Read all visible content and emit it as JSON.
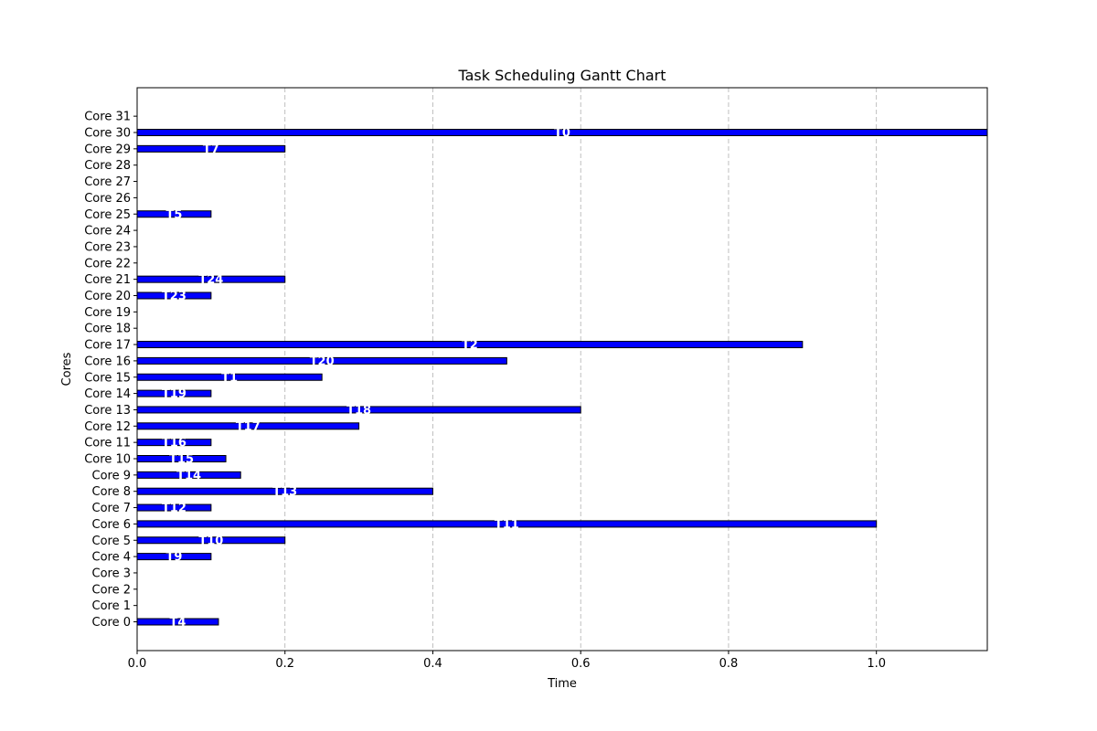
{
  "chart_data": {
    "type": "bar",
    "orientation": "horizontal",
    "title": "Task Scheduling Gantt Chart",
    "xlabel": "Time",
    "ylabel": "Cores",
    "xlim": [
      0,
      1.15
    ],
    "x_ticks": [
      "0.0",
      "0.2",
      "0.4",
      "0.6",
      "0.8",
      "1.0"
    ],
    "x_tick_values": [
      0,
      0.2,
      0.4,
      0.6,
      0.8,
      1.0
    ],
    "grid": "x-dashed",
    "bar_color": "#0000ff",
    "bar_edge_color": "#000000",
    "categories": [
      "Core 0",
      "Core 1",
      "Core 2",
      "Core 3",
      "Core 4",
      "Core 5",
      "Core 6",
      "Core 7",
      "Core 8",
      "Core 9",
      "Core 10",
      "Core 11",
      "Core 12",
      "Core 13",
      "Core 14",
      "Core 15",
      "Core 16",
      "Core 17",
      "Core 18",
      "Core 19",
      "Core 20",
      "Core 21",
      "Core 22",
      "Core 23",
      "Core 24",
      "Core 25",
      "Core 26",
      "Core 27",
      "Core 28",
      "Core 29",
      "Core 30",
      "Core 31"
    ],
    "tasks": [
      {
        "core": 0,
        "start": 0,
        "end": 0.11,
        "label": "T4"
      },
      {
        "core": 4,
        "start": 0,
        "end": 0.1,
        "label": "T9"
      },
      {
        "core": 5,
        "start": 0,
        "end": 0.2,
        "label": "T10"
      },
      {
        "core": 6,
        "start": 0,
        "end": 1.0,
        "label": "T11"
      },
      {
        "core": 7,
        "start": 0,
        "end": 0.1,
        "label": "T12"
      },
      {
        "core": 8,
        "start": 0,
        "end": 0.4,
        "label": "T13"
      },
      {
        "core": 9,
        "start": 0,
        "end": 0.14,
        "label": "T14"
      },
      {
        "core": 10,
        "start": 0,
        "end": 0.12,
        "label": "T15"
      },
      {
        "core": 11,
        "start": 0,
        "end": 0.1,
        "label": "T16"
      },
      {
        "core": 12,
        "start": 0,
        "end": 0.3,
        "label": "T17"
      },
      {
        "core": 13,
        "start": 0,
        "end": 0.6,
        "label": "T18"
      },
      {
        "core": 14,
        "start": 0,
        "end": 0.1,
        "label": "T19"
      },
      {
        "core": 15,
        "start": 0,
        "end": 0.25,
        "label": "T1"
      },
      {
        "core": 16,
        "start": 0,
        "end": 0.5,
        "label": "T20"
      },
      {
        "core": 17,
        "start": 0,
        "end": 0.9,
        "label": "T2"
      },
      {
        "core": 20,
        "start": 0,
        "end": 0.1,
        "label": "T23"
      },
      {
        "core": 21,
        "start": 0,
        "end": 0.2,
        "label": "T24"
      },
      {
        "core": 25,
        "start": 0,
        "end": 0.1,
        "label": "T5"
      },
      {
        "core": 29,
        "start": 0,
        "end": 0.2,
        "label": "T7"
      },
      {
        "core": 30,
        "start": 0,
        "end": 1.15,
        "label": "T0"
      }
    ]
  }
}
